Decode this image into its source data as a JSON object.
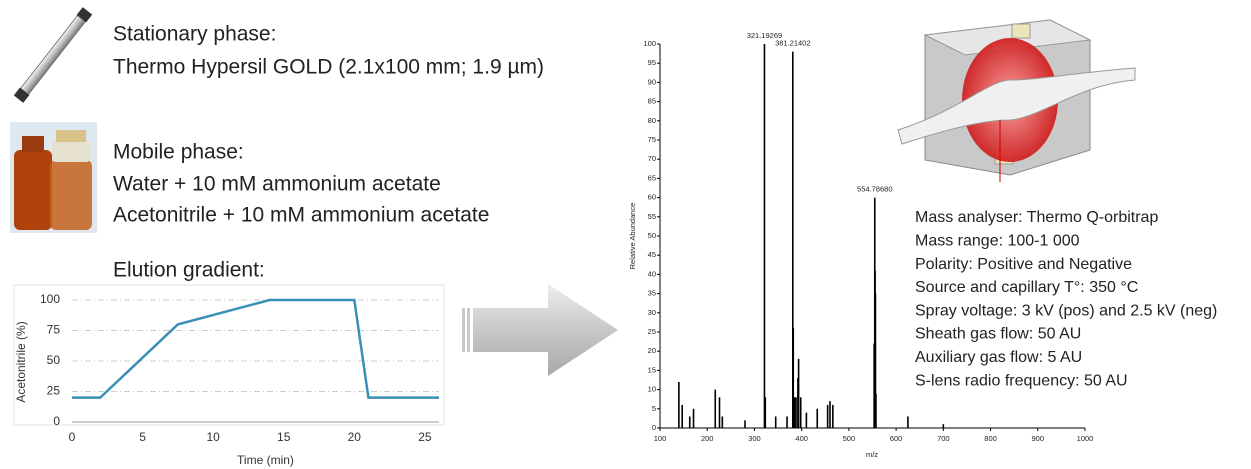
{
  "text": {
    "stationary_phase": {
      "heading": "Stationary phase:",
      "detail": "Thermo Hypersil GOLD (2.1x100 mm; 1.9 µm)"
    },
    "mobile_phase": {
      "heading": "Mobile phase:",
      "lines": [
        "Water + 10 mM ammonium acetate",
        "Acetonitrile + 10 mM ammonium acetate"
      ]
    },
    "gradient_heading": "Elution gradient:",
    "ms_settings": [
      "Mass analyser: Thermo Q-orbitrap",
      "Mass range: 100-1 000",
      "Polarity: Positive and Negative",
      "Source and capillary T°: 350 °C",
      "Spray voltage: 3 kV (pos) and 2.5 kV (neg)",
      "Sheath gas flow: 50 AU",
      "Auxiliary gas flow: 5 AU",
      "S-lens radio frequency: 50 AU"
    ]
  },
  "chart_data": [
    {
      "type": "line",
      "xlabel": "Time (min)",
      "ylabel": "Acetonitrile (%)",
      "x": [
        0,
        2,
        7.5,
        14,
        20,
        21,
        26
      ],
      "series": [
        {
          "color": "#3a8fb7",
          "values": [
            20,
            20,
            80,
            100,
            100,
            20,
            20
          ]
        }
      ],
      "xlim": [
        0,
        26
      ],
      "xticks": [
        0,
        5,
        10,
        15,
        20,
        25
      ],
      "ylim": [
        0,
        100
      ],
      "yticks": [
        0,
        25,
        50,
        75,
        100
      ],
      "grid": true
    },
    {
      "type": "stem",
      "xlabel": "m/z",
      "ylabel": "Relative Abundance",
      "color": "#000000",
      "x": [
        140,
        147,
        163,
        171,
        217,
        226,
        232,
        280,
        321.19269,
        323,
        345,
        369,
        381.21402,
        382.2,
        385,
        388,
        392,
        393.5,
        398,
        410,
        433,
        455,
        460,
        466,
        553.5,
        554.7868,
        555.5,
        556.3,
        557.3,
        625,
        700
      ],
      "values": [
        12,
        6,
        3,
        5,
        10,
        8,
        3,
        2,
        100,
        8,
        3,
        3,
        98,
        26,
        8,
        8,
        13,
        18,
        8,
        4,
        5,
        6,
        7,
        6,
        22,
        60,
        41,
        35,
        9,
        3,
        1
      ],
      "annotations": [
        {
          "x": 321.19269,
          "y": 100,
          "label": "321.19269"
        },
        {
          "x": 381.21402,
          "y": 98,
          "label": "381.21402"
        },
        {
          "x": 554.7868,
          "y": 60,
          "label": "554.78680"
        }
      ],
      "xlim": [
        100,
        1000
      ],
      "xticks": [
        100,
        200,
        300,
        400,
        500,
        600,
        700,
        800,
        900,
        1000
      ],
      "ylim": [
        0,
        100
      ],
      "yticks": [
        0,
        5,
        10,
        15,
        20,
        25,
        30,
        35,
        40,
        45,
        50,
        55,
        60,
        65,
        70,
        75,
        80,
        85,
        90,
        95,
        100
      ]
    }
  ]
}
